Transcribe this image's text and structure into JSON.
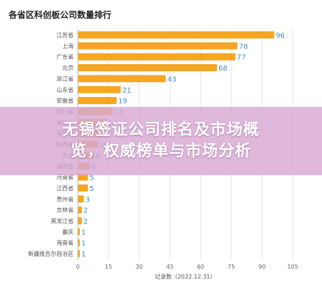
{
  "colors": {
    "bar": "#f5a623",
    "value_label": "#3a8fc9",
    "grid": "#e6e6e6",
    "banner": "#d8a8d4"
  },
  "banner": {
    "line1": "无锡签证公司排名及市场概",
    "line2": "览，权威榜单与市场分析"
  },
  "chart_data": {
    "type": "bar",
    "orientation": "horizontal",
    "title": "各省区科创板公司数量排行",
    "xlabel": "记录数（2022.12.31）",
    "xlim": [
      0,
      105
    ],
    "xticks": [
      "0",
      "15",
      "30",
      "45",
      "60",
      "75",
      "90",
      "105"
    ],
    "grid": true,
    "categories": [
      "江苏省",
      "上海",
      "广东省",
      "北京",
      "浙江省",
      "山东省",
      "安徽省",
      "四川省",
      "湖北省",
      "福建省",
      "陕西省",
      "天津",
      "湖南省",
      "河南省",
      "江西省",
      "贵州省",
      "吉林省",
      "黑龙江省",
      "重庆",
      "海南省",
      "新疆维吾尔自治区"
    ],
    "values": [
      96,
      78,
      77,
      68,
      43,
      21,
      19,
      17,
      14,
      12,
      10,
      8,
      6,
      5,
      5,
      3,
      2,
      2,
      1,
      1,
      1
    ]
  }
}
